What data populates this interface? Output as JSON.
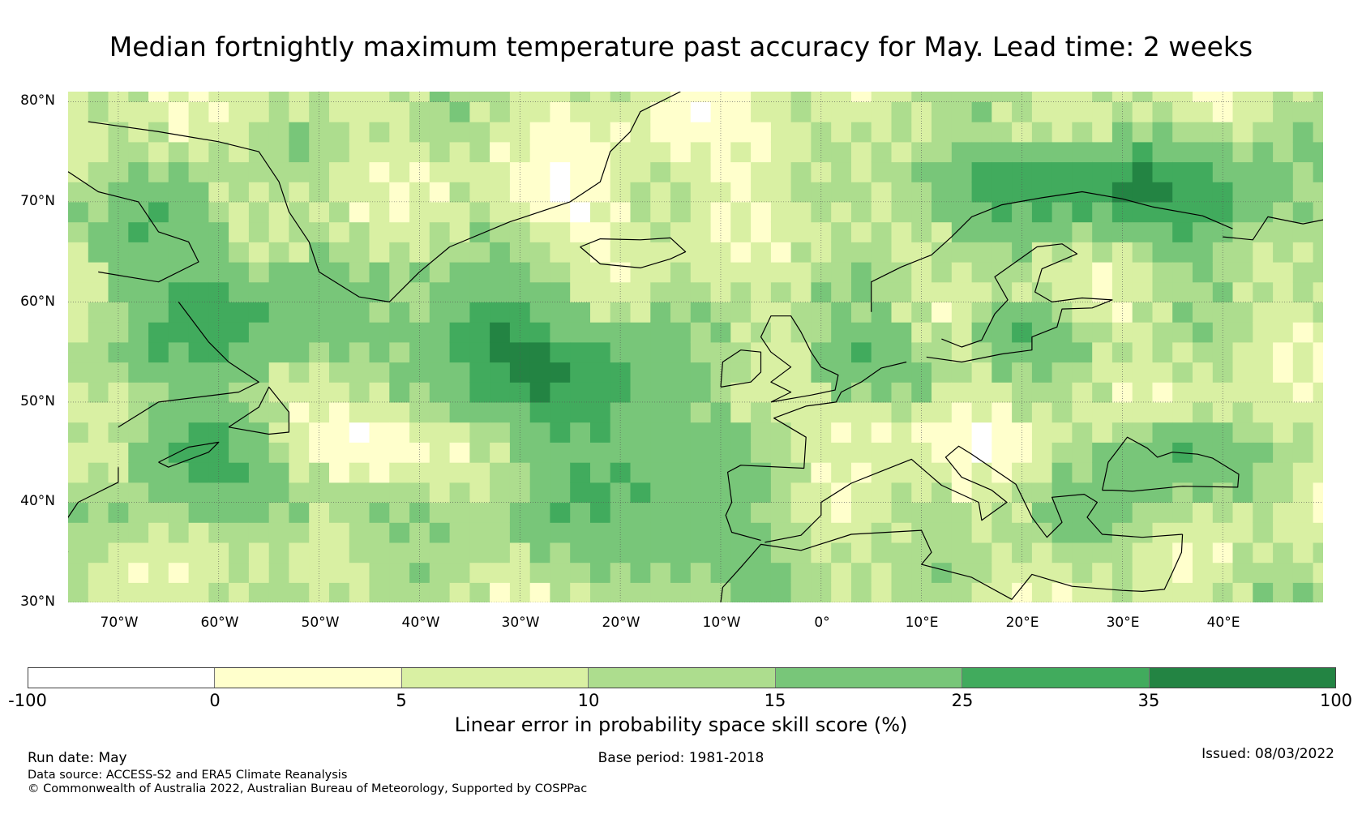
{
  "title": "Median fortnightly maximum temperature past accuracy for May. Lead time: 2 weeks",
  "map": {
    "lat_labels": [
      "80°N",
      "70°N",
      "60°N",
      "50°N",
      "40°N",
      "30°N"
    ],
    "lon_labels": [
      "70°W",
      "60°W",
      "50°W",
      "40°W",
      "30°W",
      "20°W",
      "10°W",
      "0°",
      "10°E",
      "20°E",
      "30°E",
      "40°E"
    ],
    "extent": {
      "lon_min": -75,
      "lon_max": 50,
      "lat_min": 30,
      "lat_max": 81
    }
  },
  "colorbar": {
    "bins": [
      {
        "from": -100,
        "to": 0,
        "color": "#ffffff"
      },
      {
        "from": 0,
        "to": 5,
        "color": "#ffffcc"
      },
      {
        "from": 5,
        "to": 10,
        "color": "#d9f0a3"
      },
      {
        "from": 10,
        "to": 15,
        "color": "#addd8e"
      },
      {
        "from": 15,
        "to": 25,
        "color": "#78c679"
      },
      {
        "from": 25,
        "to": 35,
        "color": "#41ab5d"
      },
      {
        "from": 35,
        "to": 100,
        "color": "#238443"
      }
    ],
    "tick_labels": [
      "-100",
      "0",
      "5",
      "10",
      "15",
      "25",
      "35",
      "100"
    ],
    "title": "Linear error in probability space skill score (%)"
  },
  "footer": {
    "run_date": "Run date: May",
    "base_period": "Base period: 1981-2018",
    "issued": "Issued: 08/03/2022",
    "data_source": "Data source: ACCESS-S2 and ERA5 Climate Reanalysis",
    "copyright": "© Commonwealth of Australia 2022, Australian Bureau of Meteorology, Supported by COSPPac"
  }
}
